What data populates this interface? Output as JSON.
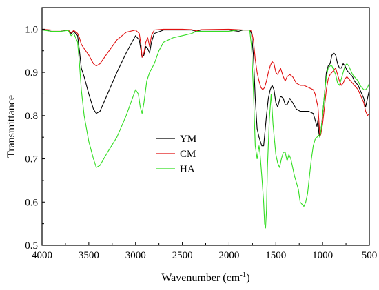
{
  "chart_data": {
    "type": "line",
    "xlabel": "Wavenumber (cm",
    "xlabel_sup": "-1",
    "xlabel_close": ")",
    "ylabel": "Transmittance",
    "xlim": [
      4000,
      500
    ],
    "ylim": [
      0.5,
      1.05
    ],
    "x_reversed": true,
    "grid": false,
    "legend_position": "center",
    "x_ticks": [
      4000,
      3500,
      3000,
      2500,
      2000,
      1500,
      1000,
      500
    ],
    "x_tick_labels": [
      "4000",
      "3500",
      "3000",
      "2500",
      "2000",
      "1500",
      "1000",
      "500"
    ],
    "y_ticks": [
      0.5,
      0.6,
      0.7,
      0.8,
      0.9,
      1.0
    ],
    "y_tick_labels": [
      "0.5",
      "0.6",
      "0.7",
      "0.8",
      "0.9",
      "1.0"
    ],
    "series": [
      {
        "name": "YM",
        "color": "#000000",
        "points": [
          [
            4000,
            1.0
          ],
          [
            3900,
            0.995
          ],
          [
            3800,
            0.995
          ],
          [
            3720,
            0.998
          ],
          [
            3690,
            0.99
          ],
          [
            3660,
            0.995
          ],
          [
            3620,
            0.985
          ],
          [
            3600,
            0.95
          ],
          [
            3580,
            0.91
          ],
          [
            3550,
            0.89
          ],
          [
            3500,
            0.85
          ],
          [
            3450,
            0.815
          ],
          [
            3420,
            0.805
          ],
          [
            3380,
            0.81
          ],
          [
            3300,
            0.85
          ],
          [
            3200,
            0.9
          ],
          [
            3100,
            0.945
          ],
          [
            3000,
            0.985
          ],
          [
            2960,
            0.975
          ],
          [
            2930,
            0.935
          ],
          [
            2910,
            0.94
          ],
          [
            2890,
            0.96
          ],
          [
            2870,
            0.955
          ],
          [
            2850,
            0.945
          ],
          [
            2830,
            0.97
          ],
          [
            2800,
            0.99
          ],
          [
            2700,
            0.998
          ],
          [
            2500,
            0.998
          ],
          [
            2400,
            0.998
          ],
          [
            2350,
            0.995
          ],
          [
            2300,
            0.998
          ],
          [
            2200,
            0.998
          ],
          [
            2000,
            0.998
          ],
          [
            1900,
            0.995
          ],
          [
            1850,
            0.998
          ],
          [
            1780,
            0.998
          ],
          [
            1760,
            0.99
          ],
          [
            1740,
            0.94
          ],
          [
            1720,
            0.84
          ],
          [
            1700,
            0.77
          ],
          [
            1680,
            0.75
          ],
          [
            1650,
            0.73
          ],
          [
            1630,
            0.73
          ],
          [
            1600,
            0.8
          ],
          [
            1580,
            0.84
          ],
          [
            1560,
            0.86
          ],
          [
            1540,
            0.87
          ],
          [
            1520,
            0.86
          ],
          [
            1500,
            0.83
          ],
          [
            1480,
            0.82
          ],
          [
            1450,
            0.845
          ],
          [
            1420,
            0.84
          ],
          [
            1400,
            0.825
          ],
          [
            1380,
            0.825
          ],
          [
            1350,
            0.84
          ],
          [
            1320,
            0.83
          ],
          [
            1280,
            0.815
          ],
          [
            1240,
            0.81
          ],
          [
            1200,
            0.81
          ],
          [
            1150,
            0.81
          ],
          [
            1100,
            0.805
          ],
          [
            1080,
            0.79
          ],
          [
            1060,
            0.775
          ],
          [
            1050,
            0.79
          ],
          [
            1040,
            0.76
          ],
          [
            1030,
            0.75
          ],
          [
            1020,
            0.76
          ],
          [
            1000,
            0.8
          ],
          [
            980,
            0.85
          ],
          [
            960,
            0.9
          ],
          [
            940,
            0.915
          ],
          [
            920,
            0.92
          ],
          [
            900,
            0.94
          ],
          [
            880,
            0.945
          ],
          [
            860,
            0.94
          ],
          [
            840,
            0.92
          ],
          [
            820,
            0.91
          ],
          [
            800,
            0.91
          ],
          [
            780,
            0.92
          ],
          [
            760,
            0.915
          ],
          [
            740,
            0.905
          ],
          [
            720,
            0.9
          ],
          [
            700,
            0.895
          ],
          [
            680,
            0.89
          ],
          [
            660,
            0.88
          ],
          [
            640,
            0.875
          ],
          [
            620,
            0.87
          ],
          [
            600,
            0.86
          ],
          [
            580,
            0.85
          ],
          [
            560,
            0.84
          ],
          [
            540,
            0.82
          ],
          [
            520,
            0.84
          ],
          [
            500,
            0.86
          ]
        ]
      },
      {
        "name": "CM",
        "color": "#e01010",
        "points": [
          [
            4000,
            1.0
          ],
          [
            3900,
            0.998
          ],
          [
            3800,
            0.998
          ],
          [
            3720,
            0.998
          ],
          [
            3690,
            0.992
          ],
          [
            3660,
            0.997
          ],
          [
            3620,
            0.99
          ],
          [
            3600,
            0.98
          ],
          [
            3580,
            0.965
          ],
          [
            3550,
            0.955
          ],
          [
            3500,
            0.94
          ],
          [
            3450,
            0.92
          ],
          [
            3420,
            0.915
          ],
          [
            3380,
            0.92
          ],
          [
            3300,
            0.945
          ],
          [
            3200,
            0.975
          ],
          [
            3100,
            0.993
          ],
          [
            3000,
            0.998
          ],
          [
            2960,
            0.99
          ],
          [
            2940,
            0.96
          ],
          [
            2930,
            0.935
          ],
          [
            2910,
            0.945
          ],
          [
            2890,
            0.97
          ],
          [
            2870,
            0.98
          ],
          [
            2850,
            0.96
          ],
          [
            2830,
            0.985
          ],
          [
            2800,
            0.998
          ],
          [
            2700,
            1.0
          ],
          [
            2500,
            1.0
          ],
          [
            2400,
            0.999
          ],
          [
            2350,
            0.996
          ],
          [
            2300,
            0.999
          ],
          [
            2000,
            1.0
          ],
          [
            1850,
            0.998
          ],
          [
            1780,
            0.998
          ],
          [
            1760,
            0.995
          ],
          [
            1740,
            0.975
          ],
          [
            1720,
            0.93
          ],
          [
            1700,
            0.9
          ],
          [
            1680,
            0.88
          ],
          [
            1660,
            0.865
          ],
          [
            1640,
            0.86
          ],
          [
            1620,
            0.865
          ],
          [
            1600,
            0.88
          ],
          [
            1580,
            0.9
          ],
          [
            1560,
            0.915
          ],
          [
            1540,
            0.925
          ],
          [
            1520,
            0.92
          ],
          [
            1500,
            0.9
          ],
          [
            1480,
            0.895
          ],
          [
            1450,
            0.91
          ],
          [
            1420,
            0.89
          ],
          [
            1400,
            0.88
          ],
          [
            1380,
            0.89
          ],
          [
            1350,
            0.895
          ],
          [
            1320,
            0.89
          ],
          [
            1280,
            0.875
          ],
          [
            1240,
            0.87
          ],
          [
            1200,
            0.87
          ],
          [
            1150,
            0.865
          ],
          [
            1100,
            0.86
          ],
          [
            1080,
            0.85
          ],
          [
            1060,
            0.83
          ],
          [
            1050,
            0.82
          ],
          [
            1040,
            0.79
          ],
          [
            1030,
            0.755
          ],
          [
            1020,
            0.755
          ],
          [
            1000,
            0.78
          ],
          [
            980,
            0.82
          ],
          [
            960,
            0.86
          ],
          [
            940,
            0.885
          ],
          [
            920,
            0.895
          ],
          [
            900,
            0.9
          ],
          [
            880,
            0.905
          ],
          [
            860,
            0.91
          ],
          [
            840,
            0.895
          ],
          [
            820,
            0.88
          ],
          [
            800,
            0.87
          ],
          [
            780,
            0.875
          ],
          [
            760,
            0.885
          ],
          [
            740,
            0.89
          ],
          [
            720,
            0.885
          ],
          [
            700,
            0.88
          ],
          [
            680,
            0.875
          ],
          [
            660,
            0.87
          ],
          [
            640,
            0.865
          ],
          [
            620,
            0.86
          ],
          [
            600,
            0.85
          ],
          [
            580,
            0.84
          ],
          [
            560,
            0.83
          ],
          [
            540,
            0.81
          ],
          [
            520,
            0.8
          ],
          [
            500,
            0.805
          ]
        ]
      },
      {
        "name": "HA",
        "color": "#33dd22",
        "points": [
          [
            4000,
            0.998
          ],
          [
            3900,
            0.995
          ],
          [
            3800,
            0.995
          ],
          [
            3720,
            0.997
          ],
          [
            3690,
            0.985
          ],
          [
            3660,
            0.99
          ],
          [
            3620,
            0.97
          ],
          [
            3600,
            0.92
          ],
          [
            3580,
            0.86
          ],
          [
            3550,
            0.8
          ],
          [
            3500,
            0.74
          ],
          [
            3450,
            0.7
          ],
          [
            3420,
            0.68
          ],
          [
            3380,
            0.685
          ],
          [
            3300,
            0.715
          ],
          [
            3200,
            0.75
          ],
          [
            3100,
            0.8
          ],
          [
            3050,
            0.83
          ],
          [
            3000,
            0.86
          ],
          [
            2970,
            0.85
          ],
          [
            2950,
            0.82
          ],
          [
            2930,
            0.805
          ],
          [
            2910,
            0.83
          ],
          [
            2880,
            0.88
          ],
          [
            2850,
            0.9
          ],
          [
            2800,
            0.92
          ],
          [
            2750,
            0.95
          ],
          [
            2700,
            0.97
          ],
          [
            2600,
            0.98
          ],
          [
            2500,
            0.985
          ],
          [
            2400,
            0.99
          ],
          [
            2350,
            0.995
          ],
          [
            2300,
            0.995
          ],
          [
            2200,
            0.995
          ],
          [
            2000,
            0.995
          ],
          [
            1900,
            0.998
          ],
          [
            1850,
            0.998
          ],
          [
            1780,
            0.998
          ],
          [
            1760,
            0.96
          ],
          [
            1740,
            0.86
          ],
          [
            1720,
            0.73
          ],
          [
            1700,
            0.7
          ],
          [
            1690,
            0.715
          ],
          [
            1680,
            0.73
          ],
          [
            1670,
            0.715
          ],
          [
            1650,
            0.66
          ],
          [
            1630,
            0.6
          ],
          [
            1620,
            0.55
          ],
          [
            1610,
            0.54
          ],
          [
            1600,
            0.58
          ],
          [
            1590,
            0.68
          ],
          [
            1570,
            0.79
          ],
          [
            1550,
            0.85
          ],
          [
            1530,
            0.78
          ],
          [
            1500,
            0.71
          ],
          [
            1480,
            0.69
          ],
          [
            1460,
            0.68
          ],
          [
            1440,
            0.7
          ],
          [
            1420,
            0.715
          ],
          [
            1400,
            0.715
          ],
          [
            1380,
            0.695
          ],
          [
            1360,
            0.71
          ],
          [
            1340,
            0.7
          ],
          [
            1300,
            0.66
          ],
          [
            1260,
            0.63
          ],
          [
            1240,
            0.6
          ],
          [
            1220,
            0.595
          ],
          [
            1200,
            0.59
          ],
          [
            1180,
            0.6
          ],
          [
            1160,
            0.62
          ],
          [
            1140,
            0.66
          ],
          [
            1120,
            0.7
          ],
          [
            1100,
            0.73
          ],
          [
            1080,
            0.745
          ],
          [
            1060,
            0.75
          ],
          [
            1040,
            0.755
          ],
          [
            1030,
            0.75
          ],
          [
            1020,
            0.76
          ],
          [
            1000,
            0.8
          ],
          [
            980,
            0.85
          ],
          [
            960,
            0.89
          ],
          [
            940,
            0.91
          ],
          [
            920,
            0.915
          ],
          [
            900,
            0.915
          ],
          [
            880,
            0.905
          ],
          [
            860,
            0.895
          ],
          [
            840,
            0.875
          ],
          [
            820,
            0.87
          ],
          [
            800,
            0.885
          ],
          [
            780,
            0.9
          ],
          [
            760,
            0.915
          ],
          [
            740,
            0.92
          ],
          [
            720,
            0.915
          ],
          [
            700,
            0.905
          ],
          [
            680,
            0.895
          ],
          [
            660,
            0.89
          ],
          [
            640,
            0.885
          ],
          [
            620,
            0.88
          ],
          [
            600,
            0.87
          ],
          [
            580,
            0.865
          ],
          [
            560,
            0.86
          ],
          [
            540,
            0.86
          ],
          [
            520,
            0.865
          ],
          [
            500,
            0.875
          ]
        ]
      }
    ],
    "legend": {
      "entries": [
        {
          "name": "YM",
          "color": "#000000"
        },
        {
          "name": "CM",
          "color": "#e01010"
        },
        {
          "name": "HA",
          "color": "#33dd22"
        }
      ]
    }
  }
}
